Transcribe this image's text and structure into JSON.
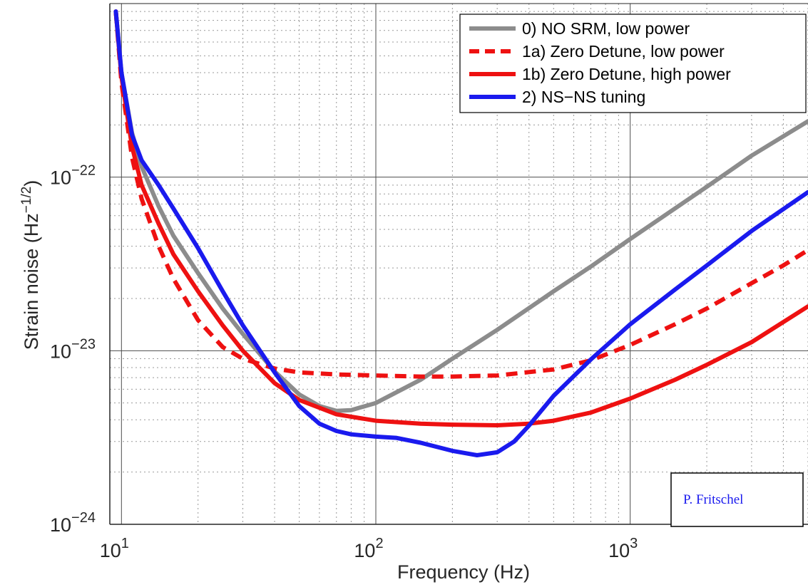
{
  "chart_data": {
    "type": "line",
    "xlabel": "Frequency (Hz)",
    "ylabel_main": "Strain noise (Hz",
    "ylabel_exp": "−1/2",
    "ylabel_close": ")",
    "x_scale": "log",
    "y_scale": "log",
    "xlim": [
      9,
      5000
    ],
    "ylim": [
      1e-24,
      1e-21
    ],
    "x_ticks": [
      {
        "value": 10,
        "base": "10",
        "exp": "1"
      },
      {
        "value": 100,
        "base": "10",
        "exp": "2"
      },
      {
        "value": 1000,
        "base": "10",
        "exp": "3"
      }
    ],
    "y_ticks": [
      {
        "value": 1e-24,
        "base": "10",
        "exp": "−24"
      },
      {
        "value": 1e-23,
        "base": "10",
        "exp": "−23"
      },
      {
        "value": 1e-22,
        "base": "10",
        "exp": "−22"
      }
    ],
    "grid": true,
    "legend_position": "top-right",
    "credit": "P. Fritschel",
    "series": [
      {
        "name": "0) NO SRM, low power",
        "color": "#8c8c8c",
        "dash": "solid",
        "points": [
          [
            9.5,
            9e-22
          ],
          [
            10,
            4e-22
          ],
          [
            11,
            1.8e-22
          ],
          [
            12,
            1.15e-22
          ],
          [
            14,
            6.8e-23
          ],
          [
            16,
            4.6e-23
          ],
          [
            20,
            2.8e-23
          ],
          [
            25,
            1.75e-23
          ],
          [
            30,
            1.25e-23
          ],
          [
            40,
            7.6e-24
          ],
          [
            50,
            5.6e-24
          ],
          [
            60,
            4.8e-24
          ],
          [
            70,
            4.5e-24
          ],
          [
            80,
            4.55e-24
          ],
          [
            100,
            5e-24
          ],
          [
            150,
            6.8e-24
          ],
          [
            200,
            9e-24
          ],
          [
            300,
            1.32e-23
          ],
          [
            500,
            2.2e-23
          ],
          [
            700,
            3.05e-23
          ],
          [
            1000,
            4.4e-23
          ],
          [
            2000,
            8.8e-23
          ],
          [
            3000,
            1.33e-22
          ],
          [
            5000,
            2.1e-22
          ]
        ]
      },
      {
        "name": "1a) Zero Detune, low power",
        "color": "#ee1111",
        "dash": "dashed",
        "points": [
          [
            9.5,
            9e-22
          ],
          [
            10,
            3.5e-22
          ],
          [
            11,
            1.3e-22
          ],
          [
            12,
            7.5e-23
          ],
          [
            14,
            4e-23
          ],
          [
            16,
            2.6e-23
          ],
          [
            20,
            1.5e-23
          ],
          [
            25,
            1.05e-23
          ],
          [
            30,
            9e-24
          ],
          [
            40,
            7.9e-24
          ],
          [
            50,
            7.5e-24
          ],
          [
            70,
            7.3e-24
          ],
          [
            100,
            7.2e-24
          ],
          [
            150,
            7.1e-24
          ],
          [
            200,
            7.1e-24
          ],
          [
            300,
            7.2e-24
          ],
          [
            500,
            7.8e-24
          ],
          [
            700,
            8.8e-24
          ],
          [
            1000,
            1.08e-23
          ],
          [
            1500,
            1.42e-23
          ],
          [
            2000,
            1.75e-23
          ],
          [
            3000,
            2.45e-23
          ],
          [
            4000,
            3.1e-23
          ],
          [
            5000,
            3.8e-23
          ]
        ]
      },
      {
        "name": "1b) Zero Detune, high power",
        "color": "#ee1111",
        "dash": "solid",
        "points": [
          [
            9.5,
            9e-22
          ],
          [
            10,
            3.8e-22
          ],
          [
            11,
            1.5e-22
          ],
          [
            12,
            9e-23
          ],
          [
            14,
            5.4e-23
          ],
          [
            16,
            3.6e-23
          ],
          [
            20,
            2.2e-23
          ],
          [
            25,
            1.4e-23
          ],
          [
            30,
            1e-23
          ],
          [
            40,
            6.5e-24
          ],
          [
            50,
            5.2e-24
          ],
          [
            70,
            4.3e-24
          ],
          [
            100,
            3.95e-24
          ],
          [
            150,
            3.8e-24
          ],
          [
            200,
            3.75e-24
          ],
          [
            300,
            3.72e-24
          ],
          [
            400,
            3.8e-24
          ],
          [
            500,
            3.95e-24
          ],
          [
            700,
            4.4e-24
          ],
          [
            1000,
            5.3e-24
          ],
          [
            1500,
            6.8e-24
          ],
          [
            2000,
            8.3e-24
          ],
          [
            3000,
            1.12e-23
          ],
          [
            5000,
            1.8e-23
          ]
        ]
      },
      {
        "name": "2) NS−NS tuning",
        "color": "#1a1aee",
        "dash": "solid",
        "points": [
          [
            9.5,
            9e-22
          ],
          [
            10,
            4e-22
          ],
          [
            11,
            1.75e-22
          ],
          [
            12,
            1.25e-22
          ],
          [
            14,
            9e-23
          ],
          [
            16,
            6.6e-23
          ],
          [
            20,
            3.9e-23
          ],
          [
            25,
            2.2e-23
          ],
          [
            30,
            1.4e-23
          ],
          [
            40,
            7.5e-24
          ],
          [
            50,
            4.8e-24
          ],
          [
            60,
            3.8e-24
          ],
          [
            70,
            3.45e-24
          ],
          [
            80,
            3.3e-24
          ],
          [
            100,
            3.2e-24
          ],
          [
            120,
            3.15e-24
          ],
          [
            150,
            2.95e-24
          ],
          [
            200,
            2.65e-24
          ],
          [
            250,
            2.5e-24
          ],
          [
            300,
            2.6e-24
          ],
          [
            350,
            3e-24
          ],
          [
            400,
            3.7e-24
          ],
          [
            500,
            5.5e-24
          ],
          [
            700,
            8.9e-24
          ],
          [
            1000,
            1.42e-23
          ],
          [
            1500,
            2.25e-23
          ],
          [
            2000,
            3.1e-23
          ],
          [
            3000,
            4.9e-23
          ],
          [
            5000,
            8.2e-23
          ]
        ]
      }
    ]
  }
}
